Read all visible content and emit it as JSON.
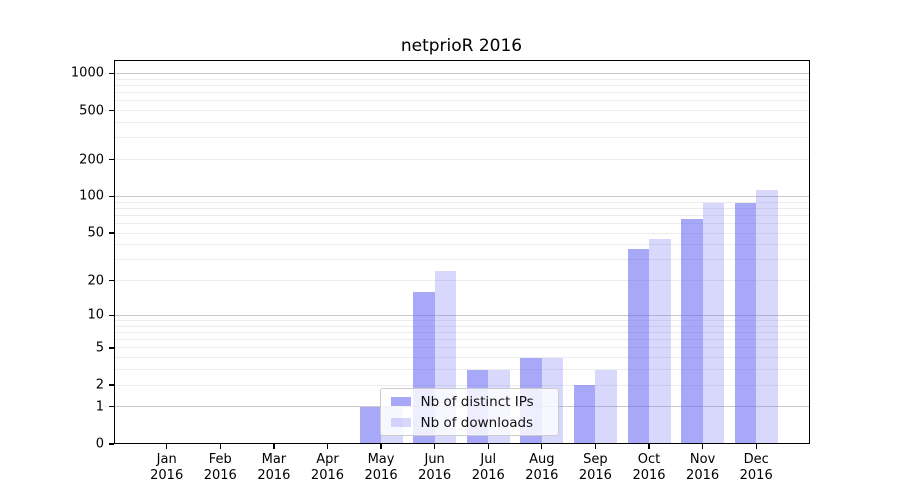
{
  "title": "netprioR 2016",
  "chart_data": {
    "type": "bar",
    "title": "netprioR 2016",
    "categories": [
      "Jan 2016",
      "Feb 2016",
      "Mar 2016",
      "Apr 2016",
      "May 2016",
      "Jun 2016",
      "Jul 2016",
      "Aug 2016",
      "Sep 2016",
      "Oct 2016",
      "Nov 2016",
      "Dec 2016"
    ],
    "series": [
      {
        "name": "Nb of distinct IPs",
        "color": "rgba(110,110,245,0.6)",
        "values": [
          0,
          0,
          0,
          0,
          1,
          16,
          3,
          4,
          2,
          37,
          65,
          88
        ]
      },
      {
        "name": "Nb of downloads",
        "color": "rgba(110,110,245,0.27)",
        "values": [
          0,
          0,
          0,
          0,
          1,
          24,
          3,
          4,
          3,
          45,
          89,
          113
        ]
      }
    ],
    "xlabel": "",
    "ylabel": "",
    "yscale": "log1p",
    "ylim": [
      0,
      1290
    ],
    "yticks": [
      0,
      1,
      2,
      5,
      10,
      20,
      50,
      100,
      200,
      500,
      1000
    ],
    "major_gridlines": [
      1,
      10,
      100,
      1000
    ],
    "minor_gridlines": [
      2,
      3,
      4,
      5,
      6,
      7,
      8,
      9,
      20,
      30,
      40,
      50,
      60,
      70,
      80,
      90,
      200,
      300,
      400,
      500,
      600,
      700,
      800,
      900
    ],
    "grid": true,
    "legend_position": "lower-center-overlay"
  },
  "colors": {
    "bar_dark": "rgba(110,110,245,0.6)",
    "bar_light": "rgba(110,110,245,0.27)",
    "grid_major": "#c9c9c9",
    "grid_minor": "#ececec",
    "axis": "#000000",
    "legend_border": "#cccccc",
    "legend_background": "rgba(255,255,255,0.8)"
  }
}
